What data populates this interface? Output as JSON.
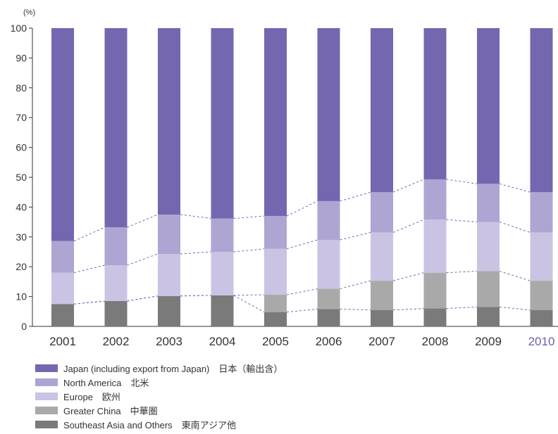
{
  "chart_data": {
    "type": "bar",
    "stacked": true,
    "ylabel": "(%)",
    "ylim": [
      0,
      100
    ],
    "yticks": [
      0,
      10,
      20,
      30,
      40,
      50,
      60,
      70,
      80,
      90,
      100
    ],
    "grid": false,
    "legend_position": "bottom-left",
    "categories": [
      "2001",
      "2002",
      "2003",
      "2004",
      "2005",
      "2006",
      "2007",
      "2008",
      "2009",
      "2010"
    ],
    "highlight_category": "2010",
    "highlight_color": "#6f5fae",
    "series": [
      {
        "name": "Southeast Asia and Others　東南アジア他",
        "color": "#7a7a7a",
        "values": [
          7.5,
          8.5,
          10.2,
          10.4,
          4.8,
          5.8,
          5.5,
          6.0,
          6.5,
          5.5
        ]
      },
      {
        "name": "Greater China　中華圏",
        "color": "#a9a9a9",
        "values": [
          0,
          0,
          0,
          0,
          5.8,
          6.8,
          9.8,
          12.0,
          12.0,
          9.8
        ]
      },
      {
        "name": "Europe　欧州",
        "color": "#cbc3e3",
        "values": [
          10.5,
          12.0,
          14.1,
          14.6,
          15.4,
          16.4,
          16.2,
          17.8,
          16.5,
          16.2
        ]
      },
      {
        "name": "North America　北米",
        "color": "#aea5d2",
        "values": [
          10.6,
          12.7,
          13.2,
          11.2,
          11.0,
          13.0,
          13.5,
          13.5,
          12.8,
          13.5
        ]
      },
      {
        "name": "Japan (including export from Japan)　日本（輸出含）",
        "color": "#7467b0",
        "values": [
          71.4,
          66.8,
          62.5,
          63.8,
          63.0,
          58.0,
          55.0,
          50.7,
          52.2,
          55.0
        ]
      }
    ]
  }
}
